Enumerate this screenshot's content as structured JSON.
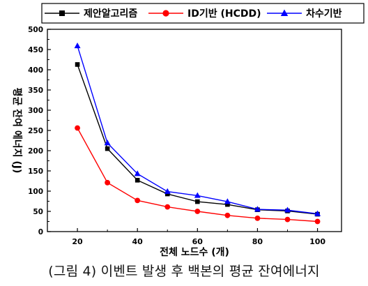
{
  "caption": "(그림 4) 이벤트 발생 후 백본의 평균 잔여에너지",
  "chart_data": {
    "type": "line",
    "title": "",
    "xlabel": "전체 노드수 (개)",
    "ylabel": "평균 잔여 에너지 (J)",
    "xlim": [
      10,
      108
    ],
    "ylim": [
      0,
      500
    ],
    "x": [
      20,
      30,
      40,
      50,
      60,
      70,
      80,
      90,
      100
    ],
    "x_ticks": [
      20,
      40,
      60,
      80,
      100
    ],
    "y_ticks": [
      0,
      50,
      100,
      150,
      200,
      250,
      300,
      350,
      400,
      450,
      500
    ],
    "grid": false,
    "legend_position": "top",
    "series": [
      {
        "name": "제안알고리즘",
        "color": "#000000",
        "marker": "square",
        "values": [
          413,
          205,
          127,
          93,
          74,
          67,
          54,
          51,
          43
        ]
      },
      {
        "name": "ID기반 (HCDD)",
        "color": "#ff0000",
        "marker": "circle",
        "values": [
          256,
          121,
          77,
          61,
          50,
          40,
          33,
          30,
          25
        ]
      },
      {
        "name": "차수기반",
        "color": "#0000ff",
        "marker": "triangle",
        "values": [
          459,
          219,
          143,
          99,
          89,
          74,
          55,
          53,
          44
        ]
      }
    ]
  }
}
